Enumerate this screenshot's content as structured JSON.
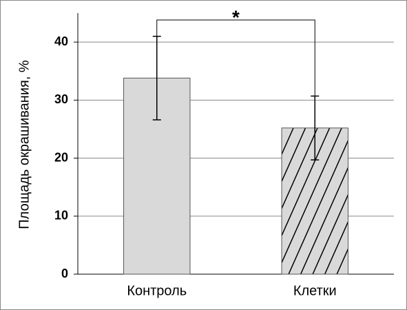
{
  "chart_data": {
    "type": "bar",
    "y_label": "Площадь окрашивания, %",
    "categories": [
      "Контроль",
      "Клетки"
    ],
    "values": [
      33.8,
      25.2
    ],
    "errors": [
      7.2,
      5.5
    ],
    "colors": [
      "#d9d9d9",
      "#d9d9d9"
    ],
    "hatch": [
      false,
      true
    ],
    "ylim": [
      0,
      45
    ],
    "yticks": [
      0,
      10,
      20,
      30,
      40
    ],
    "grid": true,
    "annotation": "*"
  }
}
